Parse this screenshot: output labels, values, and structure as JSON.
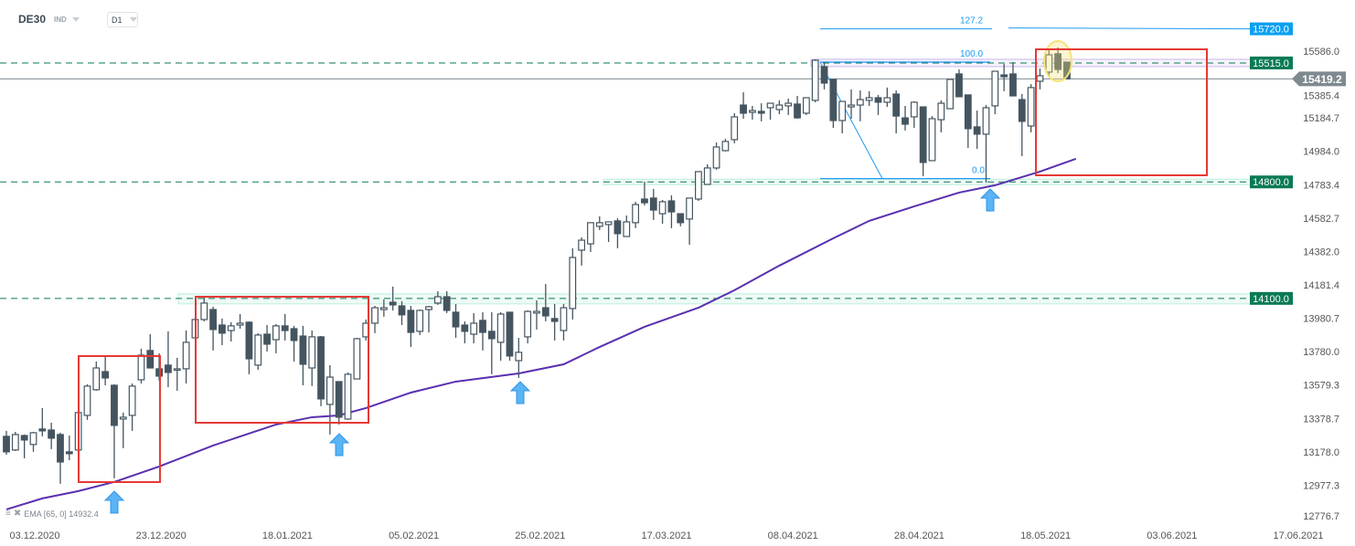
{
  "header": {
    "symbol": "DE30",
    "instrument_type": "IND",
    "timeframe": "D1"
  },
  "indicator_legend": {
    "label": "EMA [65, 0] 14932.4",
    "settings_icon": "list-icon",
    "remove_icon": "close-icon"
  },
  "colors": {
    "bull_body": "#ffffff",
    "bear_body": "#455560",
    "candle_stroke": "#455560",
    "ema": "#5a2fb0",
    "support": "#0a7a55",
    "support_zone": "#bdeedd",
    "fib": "#1e9bf0",
    "box": "#e53935",
    "highlight": "#f5e27a",
    "arrow": "#5ab4f5",
    "price_line": "#7f8a90"
  },
  "chart_data": {
    "type": "candlestick",
    "y_axis": {
      "ticks": [
        "15586.0",
        "15385.4",
        "15184.7",
        "14984.0",
        "14783.4",
        "14582.7",
        "14382.0",
        "14181.4",
        "13980.7",
        "13780.0",
        "13579.3",
        "13378.7",
        "13178.0",
        "12977.3",
        "12776.7"
      ],
      "range": [
        12776.7,
        15586.0
      ]
    },
    "x_axis": {
      "ticks": [
        "03.12.2020",
        "23.12.2020",
        "18.01.2021",
        "05.02.2021",
        "25.02.2021",
        "17.03.2021",
        "08.04.2021",
        "28.04.2021",
        "18.05.2021",
        "03.06.2021",
        "17.06.2021"
      ]
    },
    "ohlc": [
      [
        13271,
        13304,
        13161,
        13178
      ],
      [
        13189,
        13298,
        13183,
        13282
      ],
      [
        13276,
        13282,
        13139,
        13249
      ],
      [
        13222,
        13298,
        13178,
        13293
      ],
      [
        13315,
        13441,
        13271,
        13304
      ],
      [
        13309,
        13353,
        13194,
        13260
      ],
      [
        13282,
        13293,
        12986,
        13117
      ],
      [
        13178,
        13276,
        13128,
        13167
      ],
      [
        13189,
        13414,
        13167,
        13414
      ],
      [
        13397,
        13584,
        13370,
        13573
      ],
      [
        13551,
        13721,
        13545,
        13682
      ],
      [
        13660,
        13754,
        13578,
        13622
      ],
      [
        13578,
        13584,
        13019,
        13337
      ],
      [
        13375,
        13414,
        13200,
        13386
      ],
      [
        13397,
        13589,
        13304,
        13573
      ],
      [
        13611,
        13798,
        13589,
        13759
      ],
      [
        13787,
        13885,
        13682,
        13682
      ],
      [
        13677,
        13770,
        13606,
        13633
      ],
      [
        13699,
        13902,
        13567,
        13655
      ],
      [
        13671,
        13743,
        13545,
        13677
      ],
      [
        13677,
        13907,
        13589,
        13836
      ],
      [
        13863,
        13979,
        13863,
        13973
      ],
      [
        13973,
        14110,
        13962,
        14072
      ],
      [
        14033,
        14050,
        13787,
        13913
      ],
      [
        13940,
        13979,
        13819,
        13891
      ],
      [
        13907,
        13957,
        13841,
        13935
      ],
      [
        13940,
        14006,
        13918,
        13951
      ],
      [
        13957,
        13962,
        13644,
        13737
      ],
      [
        13699,
        13891,
        13671,
        13880
      ],
      [
        13885,
        13940,
        13781,
        13825
      ],
      [
        13852,
        13946,
        13770,
        13935
      ],
      [
        13935,
        14006,
        13847,
        13907
      ],
      [
        13918,
        13935,
        13721,
        13847
      ],
      [
        13874,
        13935,
        13578,
        13704
      ],
      [
        13682,
        13907,
        13573,
        13869
      ],
      [
        13869,
        13874,
        13452,
        13496
      ],
      [
        13463,
        13699,
        13282,
        13627
      ],
      [
        13600,
        13600,
        13342,
        13386
      ],
      [
        13375,
        13655,
        13370,
        13644
      ],
      [
        13616,
        13863,
        13616,
        13858
      ],
      [
        13869,
        13973,
        13847,
        13951
      ],
      [
        13951,
        14055,
        13891,
        14044
      ],
      [
        14033,
        14094,
        13990,
        14044
      ],
      [
        14077,
        14171,
        14028,
        14061
      ],
      [
        14055,
        14083,
        13940,
        14001
      ],
      [
        14028,
        14055,
        13808,
        13896
      ],
      [
        13902,
        14033,
        13880,
        14028
      ],
      [
        14033,
        14055,
        13896,
        14050
      ],
      [
        14072,
        14143,
        14061,
        14110
      ],
      [
        14110,
        14143,
        14012,
        14028
      ],
      [
        14017,
        14066,
        13863,
        13929
      ],
      [
        13940,
        13962,
        13830,
        13902
      ],
      [
        13885,
        14012,
        13830,
        13951
      ],
      [
        13968,
        14017,
        13787,
        13896
      ],
      [
        13902,
        14017,
        13644,
        13858
      ],
      [
        13836,
        14017,
        13726,
        14006
      ],
      [
        14017,
        14017,
        13726,
        13754
      ],
      [
        13726,
        13863,
        13622,
        13776
      ],
      [
        13869,
        14028,
        13830,
        14022
      ],
      [
        14012,
        14088,
        13913,
        14022
      ],
      [
        14044,
        14187,
        13962,
        13995
      ],
      [
        13979,
        14066,
        13847,
        13962
      ],
      [
        13907,
        14066,
        13847,
        14044
      ],
      [
        14039,
        14401,
        13973,
        14346
      ],
      [
        14390,
        14467,
        14297,
        14450
      ],
      [
        14428,
        14555,
        14379,
        14555
      ],
      [
        14533,
        14593,
        14511,
        14555
      ],
      [
        14544,
        14560,
        14439,
        14560
      ],
      [
        14566,
        14582,
        14401,
        14489
      ],
      [
        14472,
        14598,
        14472,
        14560
      ],
      [
        14555,
        14681,
        14522,
        14664
      ],
      [
        14697,
        14801,
        14659,
        14675
      ],
      [
        14703,
        14758,
        14571,
        14631
      ],
      [
        14609,
        14692,
        14549,
        14681
      ],
      [
        14686,
        14719,
        14522,
        14620
      ],
      [
        14609,
        14609,
        14533,
        14555
      ],
      [
        14577,
        14703,
        14423,
        14703
      ],
      [
        14697,
        14862,
        14686,
        14862
      ],
      [
        14785,
        14906,
        14785,
        14884
      ],
      [
        14884,
        15037,
        14873,
        15010
      ],
      [
        14988,
        15059,
        14983,
        15043
      ],
      [
        15054,
        15213,
        15032,
        15191
      ],
      [
        15262,
        15339,
        15180,
        15213
      ],
      [
        15218,
        15257,
        15174,
        15229
      ],
      [
        15224,
        15273,
        15164,
        15213
      ],
      [
        15246,
        15273,
        15174,
        15273
      ],
      [
        15235,
        15290,
        15207,
        15262
      ],
      [
        15257,
        15301,
        15202,
        15273
      ],
      [
        15268,
        15317,
        15180,
        15185
      ],
      [
        15213,
        15306,
        15202,
        15306
      ],
      [
        15290,
        15537,
        15279,
        15531
      ],
      [
        15493,
        15520,
        15356,
        15394
      ],
      [
        15416,
        15416,
        15125,
        15169
      ],
      [
        15169,
        15284,
        15092,
        15284
      ],
      [
        15251,
        15356,
        15180,
        15262
      ],
      [
        15262,
        15350,
        15164,
        15295
      ],
      [
        15290,
        15345,
        15257,
        15306
      ],
      [
        15306,
        15323,
        15202,
        15279
      ],
      [
        15279,
        15367,
        15251,
        15306
      ],
      [
        15328,
        15350,
        15092,
        15196
      ],
      [
        15185,
        15257,
        15109,
        15147
      ],
      [
        15191,
        15284,
        15125,
        15279
      ],
      [
        15251,
        15251,
        14834,
        14917
      ],
      [
        14928,
        15196,
        14928,
        15180
      ],
      [
        15174,
        15290,
        15098,
        15273
      ],
      [
        15240,
        15416,
        15240,
        15416
      ],
      [
        15449,
        15476,
        15312,
        15312
      ],
      [
        15323,
        15323,
        15005,
        15120
      ],
      [
        15131,
        15229,
        14999,
        15087
      ],
      [
        15087,
        15262,
        14796,
        15246
      ],
      [
        15257,
        15465,
        15207,
        15465
      ],
      [
        15443,
        15509,
        15345,
        15432
      ],
      [
        15449,
        15520,
        15317,
        15317
      ],
      [
        15295,
        15328,
        14955,
        15164
      ],
      [
        15136,
        15388,
        15098,
        15367
      ],
      [
        15405,
        15482,
        15356,
        15438
      ],
      [
        15460,
        15591,
        15432,
        15564
      ],
      [
        15570,
        15608,
        15454,
        15476
      ],
      [
        15520,
        15520,
        15419.2,
        15419.2
      ]
    ],
    "ema": {
      "period": 65,
      "points": [
        [
          0,
          12832
        ],
        [
          4,
          12898
        ],
        [
          8,
          12942
        ],
        [
          12,
          12997
        ],
        [
          17,
          13090
        ],
        [
          23,
          13216
        ],
        [
          30,
          13342
        ],
        [
          34,
          13386
        ],
        [
          37,
          13397
        ],
        [
          40,
          13441
        ],
        [
          45,
          13534
        ],
        [
          50,
          13600
        ],
        [
          57,
          13649
        ],
        [
          62,
          13704
        ],
        [
          66,
          13808
        ],
        [
          71,
          13929
        ],
        [
          77,
          14044
        ],
        [
          81,
          14149
        ],
        [
          86,
          14297
        ],
        [
          92,
          14461
        ],
        [
          96,
          14566
        ],
        [
          101,
          14653
        ],
        [
          106,
          14736
        ],
        [
          110,
          14780
        ],
        [
          115,
          14862
        ],
        [
          119,
          14939
        ]
      ]
    },
    "levels": [
      {
        "label": "15720.0",
        "value": 15720.0,
        "kind": "fib"
      },
      {
        "label": "15515.0",
        "value": 15515.0,
        "kind": "support"
      },
      {
        "label": "14800.0",
        "value": 14800.0,
        "kind": "support"
      },
      {
        "label": "14100.0",
        "value": 14100.0,
        "kind": "support"
      }
    ],
    "last_price": "15419.2",
    "fib_labels": [
      "127.2",
      "100.0",
      "0.0"
    ]
  }
}
